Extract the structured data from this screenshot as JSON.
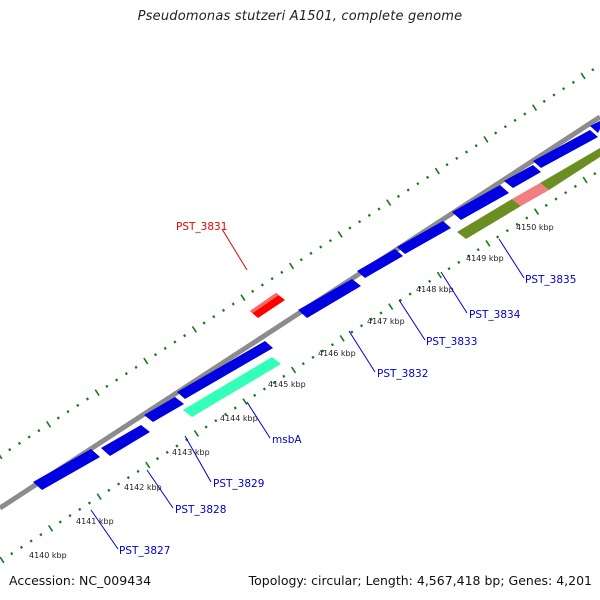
{
  "title": "Pseudomonas stutzeri A1501, complete genome",
  "footer": {
    "accession": "Accession: NC_009434",
    "summary": "Topology: circular; Length: 4,567,418 bp; Genes: 4,201"
  },
  "colors": {
    "backbone": "#8c8c8c",
    "cds_forward": "#0000e0",
    "cds_highlight_red": "#ff0000",
    "cds_msbA": "#33ffbb",
    "cds_olive": "#6b8e23",
    "cds_pink": "#f08080",
    "tick": "#1a7a1a",
    "label_blue": "#0000cc",
    "label_red": "#ee0000",
    "tick_label": "#222222"
  },
  "gene_labels": [
    {
      "id": "PST_3827",
      "text": "PST_3827",
      "color": "blue"
    },
    {
      "id": "PST_3828",
      "text": "PST_3828",
      "color": "blue"
    },
    {
      "id": "PST_3829",
      "text": "PST_3829",
      "color": "blue"
    },
    {
      "id": "msbA",
      "text": "msbA",
      "color": "blue"
    },
    {
      "id": "PST_3832",
      "text": "PST_3832",
      "color": "blue"
    },
    {
      "id": "PST_3833",
      "text": "PST_3833",
      "color": "blue"
    },
    {
      "id": "PST_3834",
      "text": "PST_3834",
      "color": "blue"
    },
    {
      "id": "PST_3835",
      "text": "PST_3835",
      "color": "blue"
    },
    {
      "id": "PST_3831",
      "text": "PST_3831",
      "color": "red"
    }
  ],
  "kbp_ticks": [
    "4140 kbp",
    "4141 kbp",
    "4142 kbp",
    "4143 kbp",
    "4144 kbp",
    "4145 kbp",
    "4146 kbp",
    "4147 kbp",
    "4148 kbp",
    "4149 kbp",
    "4150 kbp"
  ]
}
